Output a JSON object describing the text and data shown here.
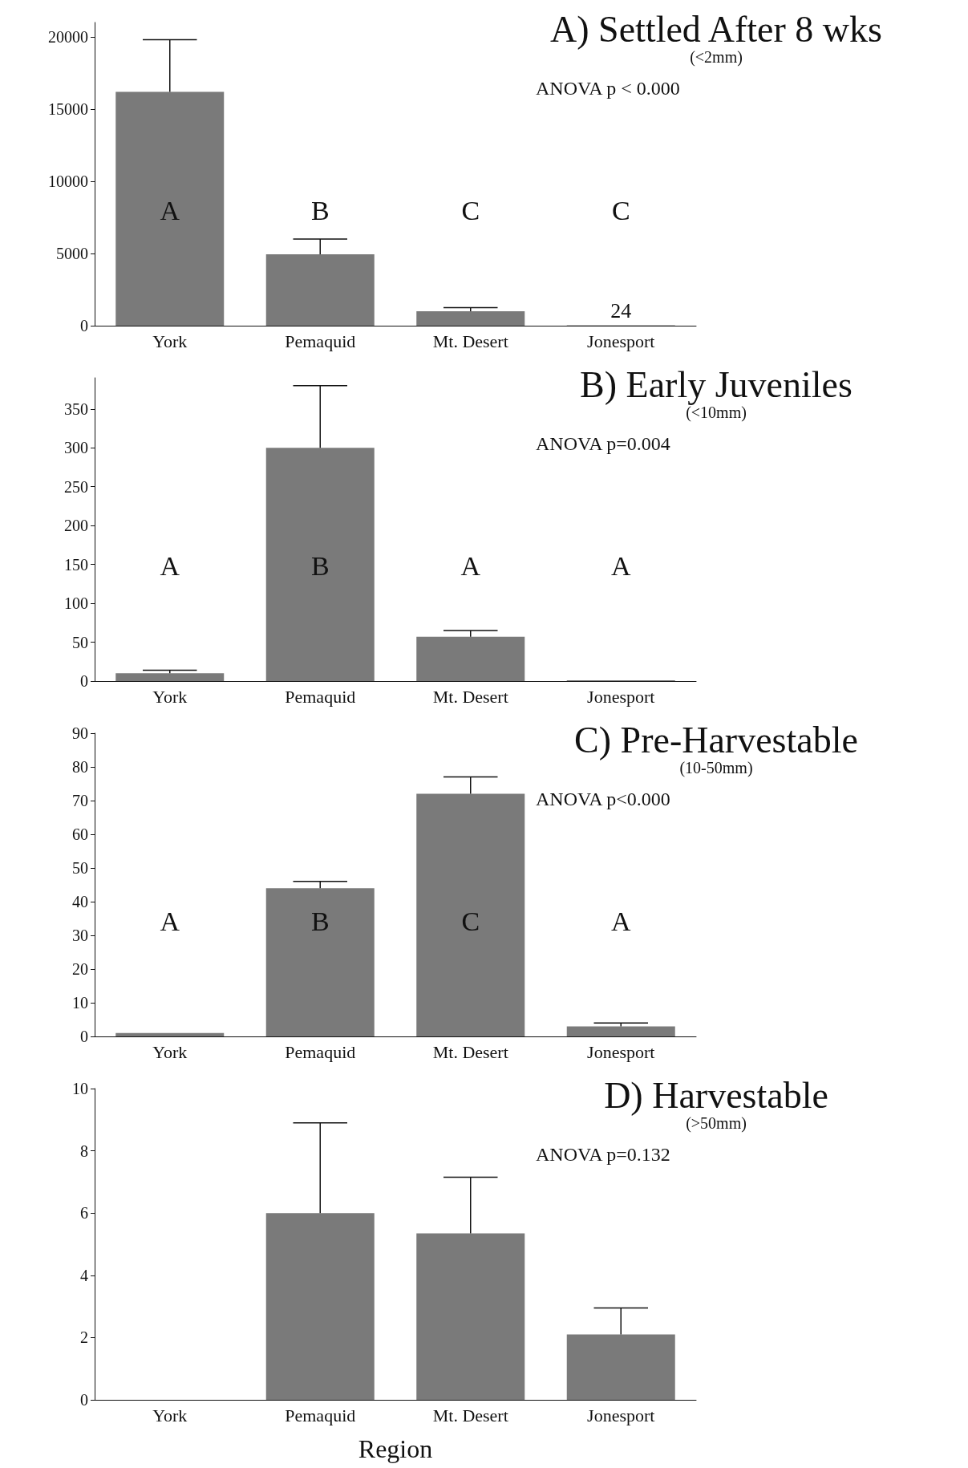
{
  "chart_data": [
    {
      "type": "bar",
      "title": "A) Settled After 8 wks",
      "subtitle": "(<2mm)",
      "categories": [
        "York",
        "Pemaquid",
        "Mt. Desert",
        "Jonesport"
      ],
      "values": [
        16200,
        4950,
        1000,
        24
      ],
      "errors": [
        [
          16200,
          19800
        ],
        [
          4950,
          6000
        ],
        [
          1000,
          1250
        ],
        null
      ],
      "value_labels": [
        null,
        null,
        null,
        "24"
      ],
      "color": "#7a7a7a",
      "ylim": [
        0,
        21000
      ],
      "yticks": [
        0,
        5000,
        10000,
        15000,
        20000
      ],
      "annotations": [
        "ANOVA p < 0.000",
        "A",
        "B",
        "C",
        "C"
      ]
    },
    {
      "type": "bar",
      "title": "B) Early Juveniles",
      "subtitle": "(<10mm)",
      "categories": [
        "York",
        "Pemaquid",
        "Mt. Desert",
        "Jonesport"
      ],
      "values": [
        10,
        300,
        57,
        1
      ],
      "errors": [
        [
          10,
          14
        ],
        [
          300,
          380
        ],
        [
          57,
          65
        ],
        null
      ],
      "color": "#7a7a7a",
      "ylim": [
        0,
        390
      ],
      "yticks": [
        0,
        50,
        100,
        150,
        200,
        250,
        300,
        350
      ],
      "annotations": [
        "ANOVA p=0.004",
        "A",
        "B",
        "A",
        "A"
      ]
    },
    {
      "type": "bar",
      "title": "C) Pre-Harvestable",
      "subtitle": "(10-50mm)",
      "categories": [
        "York",
        "Pemaquid",
        "Mt. Desert",
        "Jonesport"
      ],
      "values": [
        1,
        44,
        72,
        3
      ],
      "errors": [
        null,
        [
          44,
          46
        ],
        [
          72,
          77
        ],
        [
          3,
          4
        ]
      ],
      "color": "#7a7a7a",
      "ylim": [
        0,
        90
      ],
      "yticks": [
        0,
        10,
        20,
        30,
        40,
        50,
        60,
        70,
        80,
        90
      ],
      "annotations": [
        "ANOVA p<0.000",
        "A",
        "B",
        "C",
        "A"
      ]
    },
    {
      "type": "bar",
      "title": "D) Harvestable",
      "subtitle": "(>50mm)",
      "xlabel": "Region",
      "categories": [
        "York",
        "Pemaquid",
        "Mt. Desert",
        "Jonesport"
      ],
      "values": [
        null,
        6,
        5.35,
        2.1
      ],
      "errors": [
        null,
        [
          6,
          8.9
        ],
        [
          5.35,
          7.15
        ],
        [
          2.1,
          2.95
        ]
      ],
      "color": "#7a7a7a",
      "ylim": [
        0,
        10
      ],
      "yticks": [
        0,
        2,
        4,
        6,
        8,
        10
      ],
      "annotations": [
        "ANOVA p=0.132"
      ]
    }
  ]
}
